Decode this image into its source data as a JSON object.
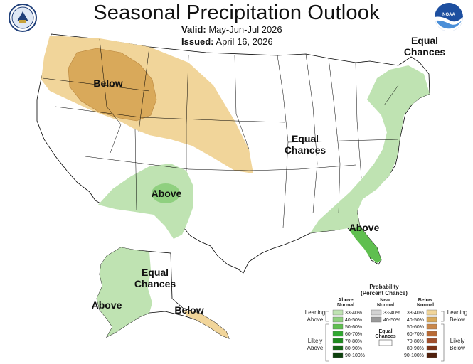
{
  "header": {
    "title": "Seasonal Precipitation Outlook",
    "valid_label": "Valid:",
    "valid_value": "May-Jun-Jul 2026",
    "issued_label": "Issued:",
    "issued_value": "April 16, 2026"
  },
  "logos": {
    "left": "commerce-seal-icon",
    "right": "noaa-logo-icon",
    "noaa_text": "NOAA"
  },
  "regions": {
    "below_west": "Below",
    "equal_center_1": "Equal",
    "equal_center_2": "Chances",
    "equal_ne_1": "Equal",
    "equal_ne_2": "Chances",
    "above_sw": "Above",
    "above_se": "Above",
    "alaska_above": "Above",
    "alaska_equal_1": "Equal",
    "alaska_equal_2": "Chances",
    "alaska_below": "Below"
  },
  "colors": {
    "above_33_40": "#bfe3b2",
    "above_40_50": "#8fd07f",
    "above_50_60": "#5fbf4f",
    "above_60_70": "#2fa82f",
    "above_70_80": "#1e8a1e",
    "above_80_90": "#166516",
    "above_90_100": "#0d400d",
    "near_33_40": "#d3d3d3",
    "near_40_50": "#9a9a9a",
    "below_33_40": "#f1d59a",
    "below_40_50": "#d9a95a",
    "below_50_60": "#c9874a",
    "below_60_70": "#b86a35",
    "below_70_80": "#a04f2c",
    "below_80_90": "#7a3317",
    "below_90_100": "#4f1f0c"
  },
  "legend": {
    "title_1": "Probability",
    "title_2": "(Percent Chance)",
    "above_head_1": "Above",
    "above_head_2": "Normal",
    "near_head_1": "Near",
    "near_head_2": "Normal",
    "below_head_1": "Below",
    "below_head_2": "Normal",
    "leaning_above_1": "Leaning",
    "leaning_above_2": "Above",
    "likely_above_1": "Likely",
    "likely_above_2": "Above",
    "leaning_below_1": "Leaning",
    "leaning_below_2": "Below",
    "likely_below_1": "Likely",
    "likely_below_2": "Below",
    "equal_1": "Equal",
    "equal_2": "Chances",
    "above_ranges": [
      "33-40%",
      "40-50%",
      "50-60%",
      "60-70%",
      "70-80%",
      "80-90%",
      "90-100%"
    ],
    "near_ranges": [
      "33-40%",
      "40-50%"
    ],
    "below_ranges": [
      "33-40%",
      "40-50%",
      "50-60%",
      "60-70%",
      "70-80%",
      "80-90%",
      "90-100%"
    ]
  }
}
